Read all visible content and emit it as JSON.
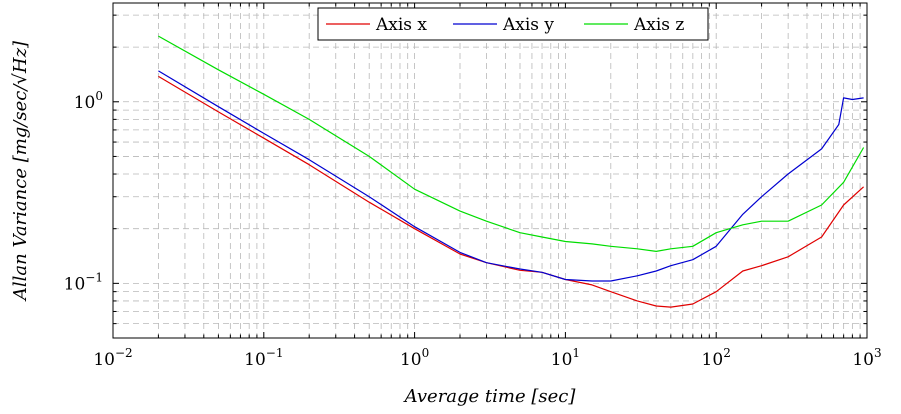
{
  "chart_data": {
    "type": "line",
    "xlabel": "Average time [sec]",
    "ylabel": "Allan Variance [mg/sec/√Hz]",
    "x_scale": "log",
    "y_scale": "log",
    "xlim": [
      0.01,
      1000
    ],
    "ylim": [
      0.05,
      3.5
    ],
    "x_ticks": [
      {
        "value": 0.01,
        "base": "10",
        "exp": "−2"
      },
      {
        "value": 0.1,
        "base": "10",
        "exp": "−1"
      },
      {
        "value": 1,
        "base": "10",
        "exp": "0"
      },
      {
        "value": 10,
        "base": "10",
        "exp": "1"
      },
      {
        "value": 100,
        "base": "10",
        "exp": "2"
      },
      {
        "value": 1000,
        "base": "10",
        "exp": "3"
      }
    ],
    "y_ticks": [
      {
        "value": 0.1,
        "base": "10",
        "exp": "−1"
      },
      {
        "value": 1,
        "base": "10",
        "exp": "0"
      }
    ],
    "grid": true,
    "legend_position": "top-right",
    "series": [
      {
        "name": "Axis x",
        "color": "#e00000",
        "x": [
          0.02,
          0.05,
          0.1,
          0.2,
          0.5,
          1,
          2,
          3,
          5,
          7,
          10,
          15,
          20,
          30,
          40,
          50,
          70,
          100,
          150,
          200,
          300,
          500,
          700,
          950
        ],
        "y": [
          1.38,
          0.88,
          0.63,
          0.45,
          0.28,
          0.2,
          0.145,
          0.13,
          0.118,
          0.115,
          0.105,
          0.098,
          0.09,
          0.08,
          0.075,
          0.074,
          0.077,
          0.09,
          0.117,
          0.125,
          0.14,
          0.18,
          0.27,
          0.34
        ]
      },
      {
        "name": "Axis y",
        "color": "#0000d0",
        "x": [
          0.02,
          0.05,
          0.1,
          0.2,
          0.5,
          1,
          2,
          3,
          5,
          7,
          10,
          15,
          20,
          30,
          40,
          50,
          70,
          100,
          150,
          200,
          300,
          500,
          650,
          700,
          800,
          950
        ],
        "y": [
          1.48,
          0.94,
          0.67,
          0.48,
          0.3,
          0.205,
          0.148,
          0.13,
          0.12,
          0.115,
          0.105,
          0.103,
          0.103,
          0.11,
          0.117,
          0.125,
          0.135,
          0.16,
          0.24,
          0.3,
          0.4,
          0.55,
          0.75,
          1.05,
          1.03,
          1.05
        ]
      },
      {
        "name": "Axis z",
        "color": "#00dd00",
        "x": [
          0.02,
          0.05,
          0.1,
          0.2,
          0.5,
          1,
          2,
          3,
          5,
          7,
          10,
          15,
          20,
          30,
          40,
          50,
          70,
          100,
          150,
          200,
          300,
          500,
          700,
          950
        ],
        "y": [
          2.3,
          1.5,
          1.1,
          0.8,
          0.5,
          0.33,
          0.25,
          0.22,
          0.19,
          0.18,
          0.17,
          0.165,
          0.16,
          0.155,
          0.15,
          0.155,
          0.16,
          0.19,
          0.21,
          0.22,
          0.22,
          0.27,
          0.36,
          0.56
        ]
      }
    ]
  }
}
